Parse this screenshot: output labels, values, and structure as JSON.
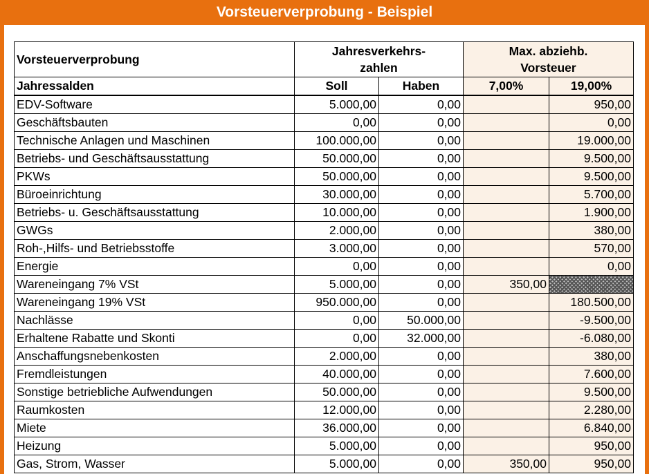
{
  "title": "Vorsteuerverprobung - Beispiel",
  "header": {
    "row1_label": "Vorsteuerverprobung",
    "group_umsatz_line1": "Jahresverkehrs-",
    "group_umsatz_line2": "zahlen",
    "group_vorsteuer_line1": "Max. abziehb.",
    "group_vorsteuer_line2": "Vorsteuer",
    "row2_label": "Jahressalden",
    "col_soll": "Soll",
    "col_haben": "Haben",
    "col_7": "7,00%",
    "col_19": "19,00%"
  },
  "colors": {
    "accent": "#e8700f",
    "tax_column_fill": "#fbf1e6"
  },
  "rows": [
    {
      "name": "EDV-Software",
      "soll": "5.000,00",
      "haben": "0,00",
      "v7": "",
      "v19": "950,00"
    },
    {
      "name": "Geschäftsbauten",
      "soll": "0,00",
      "haben": "0,00",
      "v7": "",
      "v19": "0,00"
    },
    {
      "name": "Technische Anlagen und Maschinen",
      "soll": "100.000,00",
      "haben": "0,00",
      "v7": "",
      "v19": "19.000,00"
    },
    {
      "name": "Betriebs- und Geschäftsausstattung",
      "soll": "50.000,00",
      "haben": "0,00",
      "v7": "",
      "v19": "9.500,00"
    },
    {
      "name": "PKWs",
      "soll": "50.000,00",
      "haben": "0,00",
      "v7": "",
      "v19": "9.500,00"
    },
    {
      "name": "Büroeinrichtung",
      "soll": "30.000,00",
      "haben": "0,00",
      "v7": "",
      "v19": "5.700,00"
    },
    {
      "name": "Betriebs- u. Geschäftsausstattung",
      "soll": "10.000,00",
      "haben": "0,00",
      "v7": "",
      "v19": "1.900,00"
    },
    {
      "name": "GWGs",
      "soll": "2.000,00",
      "haben": "0,00",
      "v7": "",
      "v19": "380,00"
    },
    {
      "name": "Roh-,Hilfs- und Betriebsstoffe",
      "soll": "3.000,00",
      "haben": "0,00",
      "v7": "",
      "v19": "570,00"
    },
    {
      "name": "Energie",
      "soll": "0,00",
      "haben": "0,00",
      "v7": "",
      "v19": "0,00"
    },
    {
      "name": "Wareneingang 7% VSt",
      "soll": "5.000,00",
      "haben": "0,00",
      "v7": "350,00",
      "v19": "",
      "hatch19": true
    },
    {
      "name": "Wareneingang 19% VSt",
      "soll": "950.000,00",
      "haben": "0,00",
      "v7": "",
      "v19": "180.500,00"
    },
    {
      "name": "Nachlässe",
      "soll": "0,00",
      "haben": "50.000,00",
      "v7": "",
      "v19": "-9.500,00"
    },
    {
      "name": "Erhaltene Rabatte und Skonti",
      "soll": "0,00",
      "haben": "32.000,00",
      "v7": "",
      "v19": "-6.080,00"
    },
    {
      "name": "Anschaffungsnebenkosten",
      "soll": "2.000,00",
      "haben": "0,00",
      "v7": "",
      "v19": "380,00"
    },
    {
      "name": "Fremdleistungen",
      "soll": "40.000,00",
      "haben": "0,00",
      "v7": "",
      "v19": "7.600,00"
    },
    {
      "name": "Sonstige betriebliche Aufwendungen",
      "soll": "50.000,00",
      "haben": "0,00",
      "v7": "",
      "v19": "9.500,00"
    },
    {
      "name": "Raumkosten",
      "soll": "12.000,00",
      "haben": "0,00",
      "v7": "",
      "v19": "2.280,00"
    },
    {
      "name": "Miete",
      "soll": "36.000,00",
      "haben": "0,00",
      "v7": "",
      "v19": "6.840,00"
    },
    {
      "name": "Heizung",
      "soll": "5.000,00",
      "haben": "0,00",
      "v7": "",
      "v19": "950,00"
    },
    {
      "name": "Gas, Strom, Wasser",
      "soll": "5.000,00",
      "haben": "0,00",
      "v7": "350,00",
      "v19": "950,00"
    }
  ]
}
